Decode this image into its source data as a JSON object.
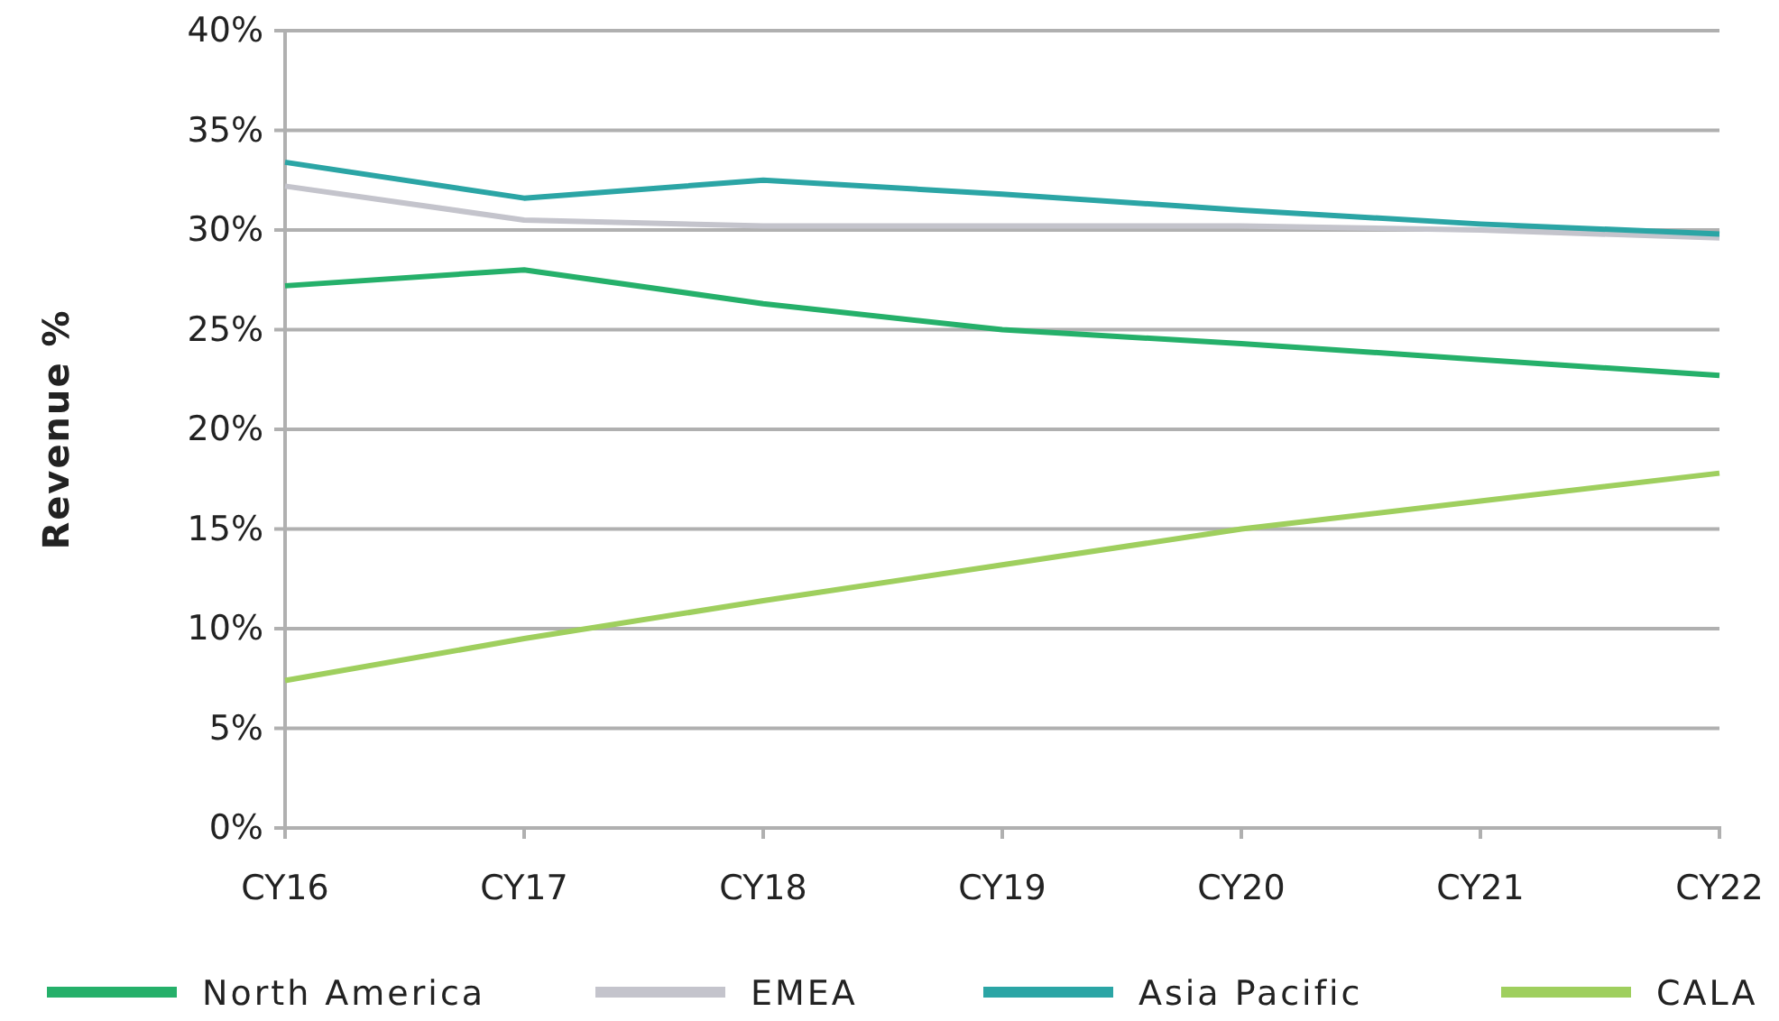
{
  "chart_data": {
    "type": "line",
    "ylabel": "Revenue %",
    "categories": [
      "CY16",
      "CY17",
      "CY18",
      "CY19",
      "CY20",
      "CY21",
      "CY22"
    ],
    "ylim": [
      0,
      40
    ],
    "yticks": [
      {
        "value": 0,
        "label": "0%"
      },
      {
        "value": 5,
        "label": "5%"
      },
      {
        "value": 10,
        "label": "10%"
      },
      {
        "value": 15,
        "label": "15%"
      },
      {
        "value": 20,
        "label": "20%"
      },
      {
        "value": 25,
        "label": "25%"
      },
      {
        "value": 30,
        "label": "30%"
      },
      {
        "value": 35,
        "label": "35%"
      },
      {
        "value": 40,
        "label": "40%"
      }
    ],
    "grid": "y",
    "legend": "bottom",
    "marker": "none",
    "line_style": "solid",
    "series": [
      {
        "name": "North America",
        "color": "#25b06a",
        "values": [
          27.2,
          28.0,
          26.3,
          25.0,
          24.3,
          23.5,
          22.7
        ]
      },
      {
        "name": "EMEA",
        "color": "#c4c4cc",
        "values": [
          32.2,
          30.5,
          30.2,
          30.2,
          30.2,
          30.0,
          29.6
        ]
      },
      {
        "name": "Asia Pacific",
        "color": "#2ba5a5",
        "values": [
          33.4,
          31.6,
          32.5,
          31.8,
          31.0,
          30.3,
          29.8
        ]
      },
      {
        "name": "CALA",
        "color": "#9fcf5e",
        "values": [
          7.4,
          9.5,
          11.4,
          13.2,
          15.0,
          16.4,
          17.8
        ]
      }
    ]
  }
}
